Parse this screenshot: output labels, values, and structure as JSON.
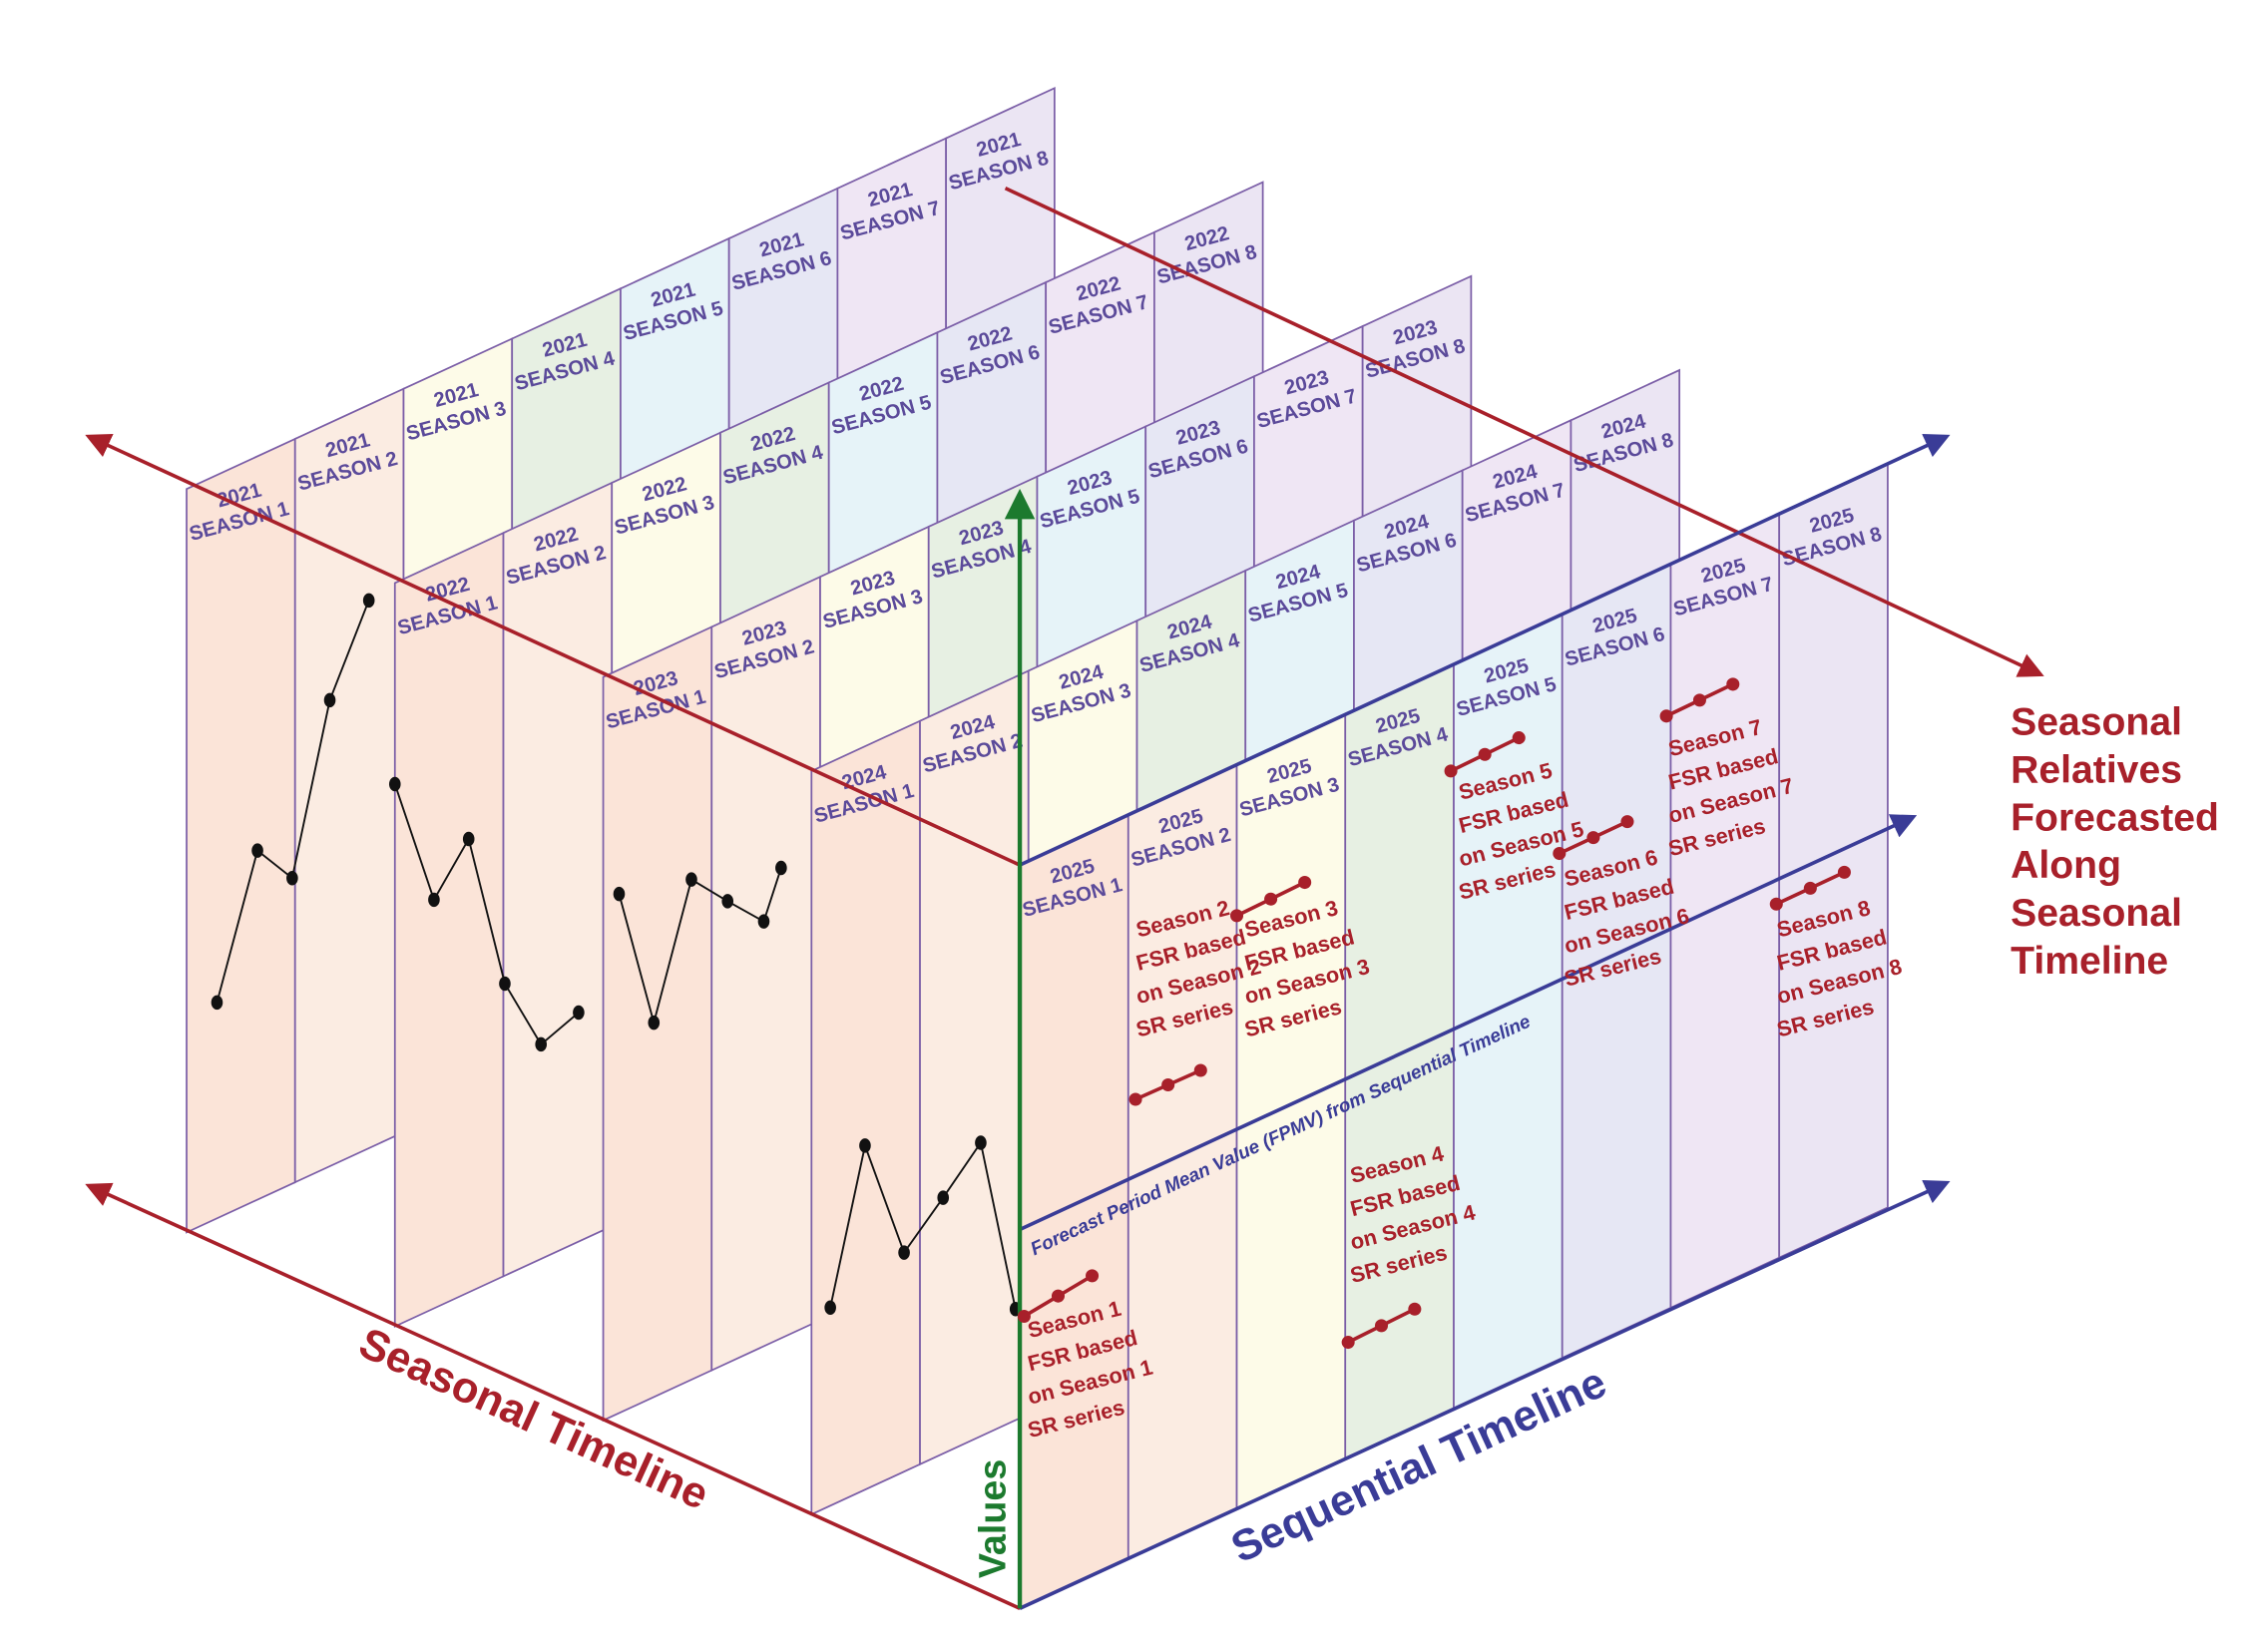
{
  "panels": [
    {
      "year": "2021"
    },
    {
      "year": "2022"
    },
    {
      "year": "2023"
    },
    {
      "year": "2024"
    },
    {
      "year": "2025"
    }
  ],
  "seasons": [
    "SEASON 1",
    "SEASON 2",
    "SEASON 3",
    "SEASON 4",
    "SEASON 5",
    "SEASON 6",
    "SEASON 7",
    "SEASON 8"
  ],
  "axes": {
    "seasonal": "Seasonal Timeline",
    "sequential": "Sequential Timeline",
    "values": "Values"
  },
  "fpmv": "Forecast Period Mean Value (FPMV) from Sequential Timeline",
  "forecast_label": [
    "Seasonal",
    "Relatives",
    "Forecasted",
    "Along",
    "Seasonal",
    "Timeline"
  ],
  "notes": [
    [
      "Season 1",
      "FSR based",
      "on Season 1",
      "SR series"
    ],
    [
      "Season 2",
      "FSR based",
      "on Season 2",
      "SR series"
    ],
    [
      "Season 3",
      "FSR based",
      "on Season 3",
      "SR series"
    ],
    [
      "Season 4",
      "FSR based",
      "on Season 4",
      "SR series"
    ],
    [
      "Season 5",
      "FSR based",
      "on Season 5",
      "SR series"
    ],
    [
      "Season 6",
      "FSR based",
      "on Season 6",
      "SR series"
    ],
    [
      "Season 7",
      "FSR based",
      "on Season 7",
      "SR series"
    ],
    [
      "Season 8",
      "FSR based",
      "on Season 8",
      "SR series"
    ]
  ]
}
